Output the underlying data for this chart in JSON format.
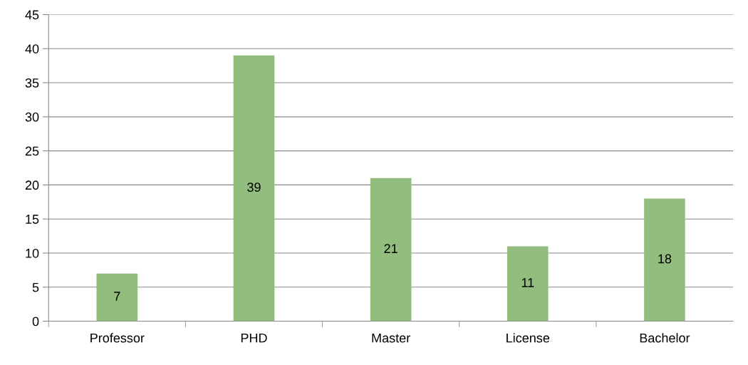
{
  "chart_data": {
    "type": "bar",
    "categories": [
      "Professor",
      "PHD",
      "Master",
      "License",
      "Bachelor"
    ],
    "values": [
      7,
      39,
      21,
      11,
      18
    ],
    "color": "#93bd7e",
    "ylim": [
      0,
      45
    ],
    "yticks": [
      0,
      5,
      10,
      15,
      20,
      25,
      30,
      35,
      40,
      45
    ],
    "grid": "y",
    "data_labels": true,
    "legend": false
  }
}
